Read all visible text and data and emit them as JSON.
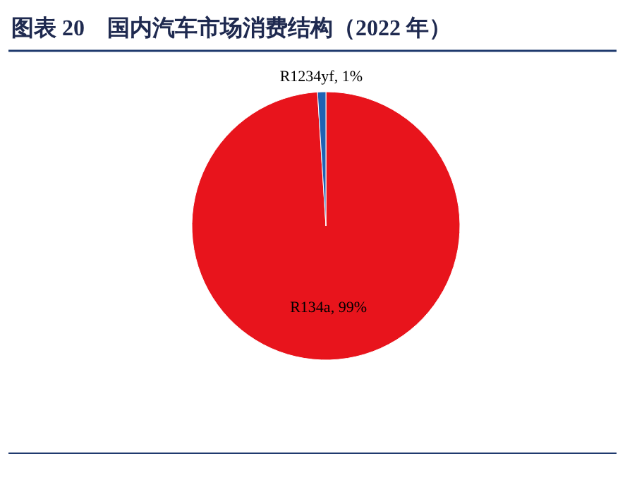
{
  "chart_data": {
    "type": "pie",
    "title": "图表 20　国内汽车市场消费结构（2022 年）",
    "categories": [
      "R134a",
      "R1234yf"
    ],
    "values": [
      99,
      1
    ],
    "value_labels": [
      "99%",
      "1%"
    ],
    "colors": [
      "#e8141c",
      "#1f63b4"
    ],
    "legend": false
  }
}
